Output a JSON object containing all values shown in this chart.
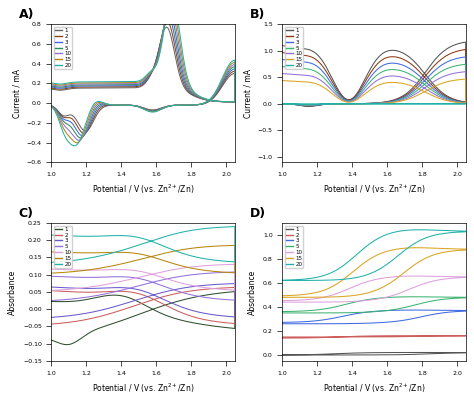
{
  "cycles": [
    1,
    2,
    3,
    5,
    10,
    15,
    20
  ],
  "colors_A": [
    "#666666",
    "#8B4513",
    "#4169E1",
    "#2E8B57",
    "#9370DB",
    "#B8860B",
    "#20B2AA"
  ],
  "colors_B": [
    "#555555",
    "#8B3A13",
    "#4169E1",
    "#3CB371",
    "#9370DB",
    "#DAA520",
    "#20B2AA"
  ],
  "colors_C": [
    "#2F4F2F",
    "#CD5C5C",
    "#6A5ACD",
    "#9370DB",
    "#DDA0DD",
    "#B8860B",
    "#20B2AA"
  ],
  "colors_D": [
    "#555555",
    "#CD5C5C",
    "#4169E1",
    "#3CB371",
    "#DDA0DD",
    "#DAA520",
    "#20B2AA"
  ],
  "xlabel": "Potential / V (vs. Zn$^{2+}$/Zn)",
  "ylabel_AB": "Current / mA",
  "ylabel_CD": "Absorbance",
  "panel_labels": [
    "A)",
    "B)",
    "C)",
    "D)"
  ],
  "xlim": [
    1.0,
    2.05
  ],
  "ylim_A": [
    -0.6,
    0.8
  ],
  "ylim_B": [
    -1.1,
    1.5
  ],
  "ylim_C": [
    -0.15,
    0.25
  ],
  "ylim_D": [
    -0.05,
    1.1
  ],
  "xticks_A": [
    1.0,
    1.2,
    1.4,
    1.6,
    1.8,
    2.0
  ],
  "xticks_B": [
    1.0,
    1.2,
    1.4,
    1.6,
    1.8,
    2.0
  ],
  "xticks_C": [
    1.0,
    1.2,
    1.4,
    1.6,
    1.8,
    2.0
  ],
  "xticks_D": [
    1.0,
    1.2,
    1.4,
    1.6,
    1.8,
    2.0
  ],
  "background": "#ffffff",
  "legend_labels": [
    "1",
    "2",
    "3",
    "5",
    "10",
    "15",
    "20"
  ]
}
